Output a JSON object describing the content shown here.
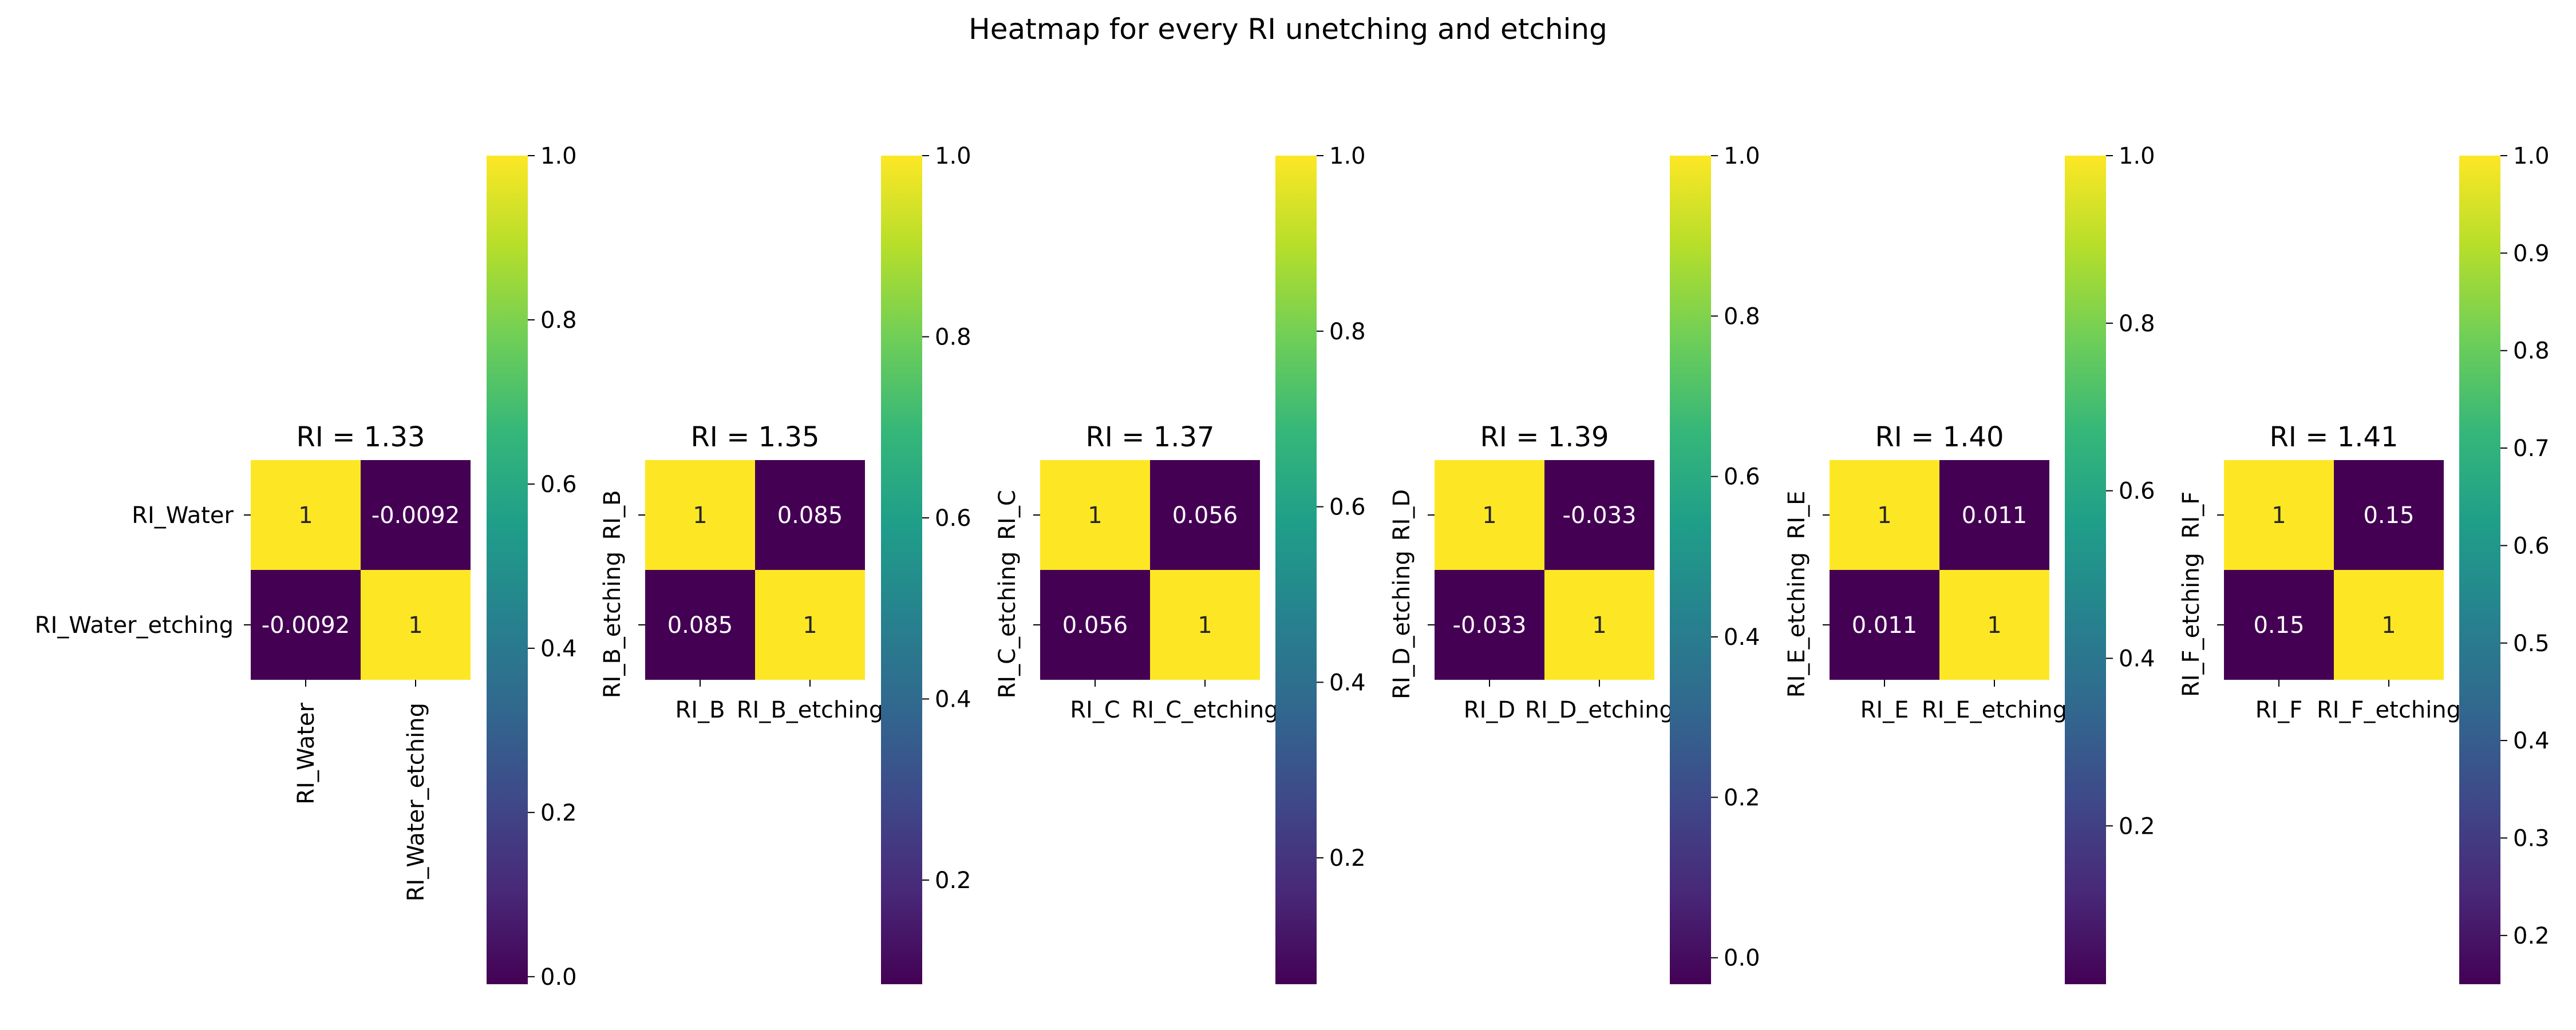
{
  "figure": {
    "title": "Heatmap for every RI unetching and etching"
  },
  "colormap": {
    "name": "viridis",
    "stops": [
      "#440154",
      "#482878",
      "#3e4989",
      "#31688e",
      "#26828e",
      "#1f9e89",
      "#35b779",
      "#6ece58",
      "#b5de2b",
      "#fde725"
    ]
  },
  "chart_data": [
    {
      "type": "heatmap",
      "title": "RI = 1.33",
      "xlabel": "",
      "ylabel": "",
      "row_labels": [
        "RI_Water",
        "RI_Water_etching"
      ],
      "col_labels": [
        "RI_Water",
        "RI_Water_etching"
      ],
      "values": [
        [
          1,
          -0.0092
        ],
        [
          -0.0092,
          1
        ]
      ],
      "annotations": [
        [
          "1",
          "-0.0092"
        ],
        [
          "-0.0092",
          "1"
        ]
      ],
      "colorbar": {
        "range": [
          -0.0092,
          1
        ],
        "ticks": [
          "0.0",
          "0.2",
          "0.4",
          "0.6",
          "0.8",
          "1.0"
        ]
      }
    },
    {
      "type": "heatmap",
      "title": "RI = 1.35",
      "xlabel": "",
      "ylabel": "",
      "row_labels": [
        "RI_B",
        "RI_B_etching"
      ],
      "col_labels": [
        "RI_B",
        "RI_B_etching"
      ],
      "values": [
        [
          1,
          0.085
        ],
        [
          0.085,
          1
        ]
      ],
      "annotations": [
        [
          "1",
          "0.085"
        ],
        [
          "0.085",
          "1"
        ]
      ],
      "colorbar": {
        "range": [
          0.085,
          1
        ],
        "ticks": [
          "0.2",
          "0.4",
          "0.6",
          "0.8",
          "1.0"
        ]
      }
    },
    {
      "type": "heatmap",
      "title": "RI = 1.37",
      "xlabel": "",
      "ylabel": "",
      "row_labels": [
        "RI_C",
        "RI_C_etching"
      ],
      "col_labels": [
        "RI_C",
        "RI_C_etching"
      ],
      "values": [
        [
          1,
          0.056
        ],
        [
          0.056,
          1
        ]
      ],
      "annotations": [
        [
          "1",
          "0.056"
        ],
        [
          "0.056",
          "1"
        ]
      ],
      "colorbar": {
        "range": [
          0.056,
          1
        ],
        "ticks": [
          "0.2",
          "0.4",
          "0.6",
          "0.8",
          "1.0"
        ]
      }
    },
    {
      "type": "heatmap",
      "title": "RI = 1.39",
      "xlabel": "",
      "ylabel": "",
      "row_labels": [
        "RI_D",
        "RI_D_etching"
      ],
      "col_labels": [
        "RI_D",
        "RI_D_etching"
      ],
      "values": [
        [
          1,
          -0.033
        ],
        [
          -0.033,
          1
        ]
      ],
      "annotations": [
        [
          "1",
          "-0.033"
        ],
        [
          "-0.033",
          "1"
        ]
      ],
      "colorbar": {
        "range": [
          -0.033,
          1
        ],
        "ticks": [
          "0.0",
          "0.2",
          "0.4",
          "0.6",
          "0.8",
          "1.0"
        ]
      }
    },
    {
      "type": "heatmap",
      "title": "RI = 1.40",
      "xlabel": "",
      "ylabel": "",
      "row_labels": [
        "RI_E",
        "RI_E_etching"
      ],
      "col_labels": [
        "RI_E",
        "RI_E_etching"
      ],
      "values": [
        [
          1,
          0.011
        ],
        [
          0.011,
          1
        ]
      ],
      "annotations": [
        [
          "1",
          "0.011"
        ],
        [
          "0.011",
          "1"
        ]
      ],
      "colorbar": {
        "range": [
          0.011,
          1
        ],
        "ticks": [
          "0.2",
          "0.4",
          "0.6",
          "0.8",
          "1.0"
        ]
      }
    },
    {
      "type": "heatmap",
      "title": "RI = 1.41",
      "xlabel": "",
      "ylabel": "",
      "row_labels": [
        "RI_F",
        "RI_F_etching"
      ],
      "col_labels": [
        "RI_F",
        "RI_F_etching"
      ],
      "values": [
        [
          1,
          0.15
        ],
        [
          0.15,
          1
        ]
      ],
      "annotations": [
        [
          "1",
          "0.15"
        ],
        [
          "0.15",
          "1"
        ]
      ],
      "colorbar": {
        "range": [
          0.15,
          1
        ],
        "ticks": [
          "0.2",
          "0.3",
          "0.4",
          "0.5",
          "0.6",
          "0.7",
          "0.8",
          "0.9",
          "1.0"
        ]
      }
    }
  ]
}
